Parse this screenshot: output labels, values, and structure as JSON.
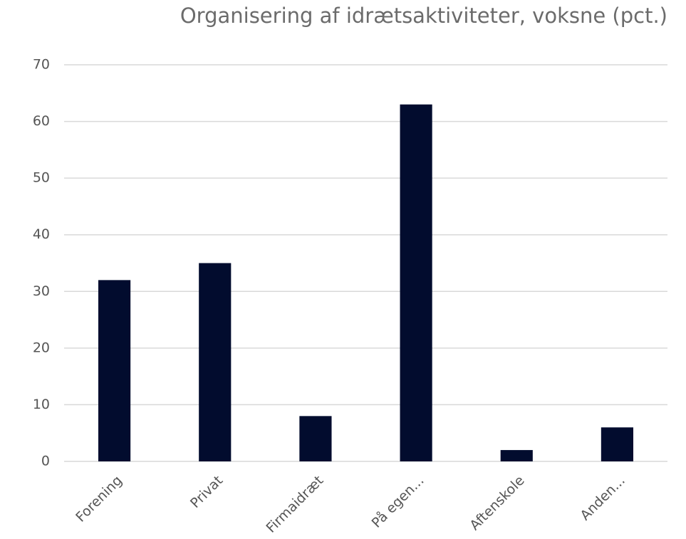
{
  "chart_data": {
    "type": "bar",
    "title": "Organisering af idrætsaktiviteter, voksne (pct.)",
    "categories": [
      "Forening",
      "Privat",
      "Firmaidræt",
      "På egen...",
      "Aftenskole",
      "Anden..."
    ],
    "values": [
      32,
      35,
      8,
      63,
      2,
      6
    ],
    "color": "#020c2e",
    "ylim": [
      0,
      70
    ],
    "yticks": [
      0,
      10,
      20,
      30,
      40,
      50,
      60,
      70
    ],
    "grid": true
  }
}
